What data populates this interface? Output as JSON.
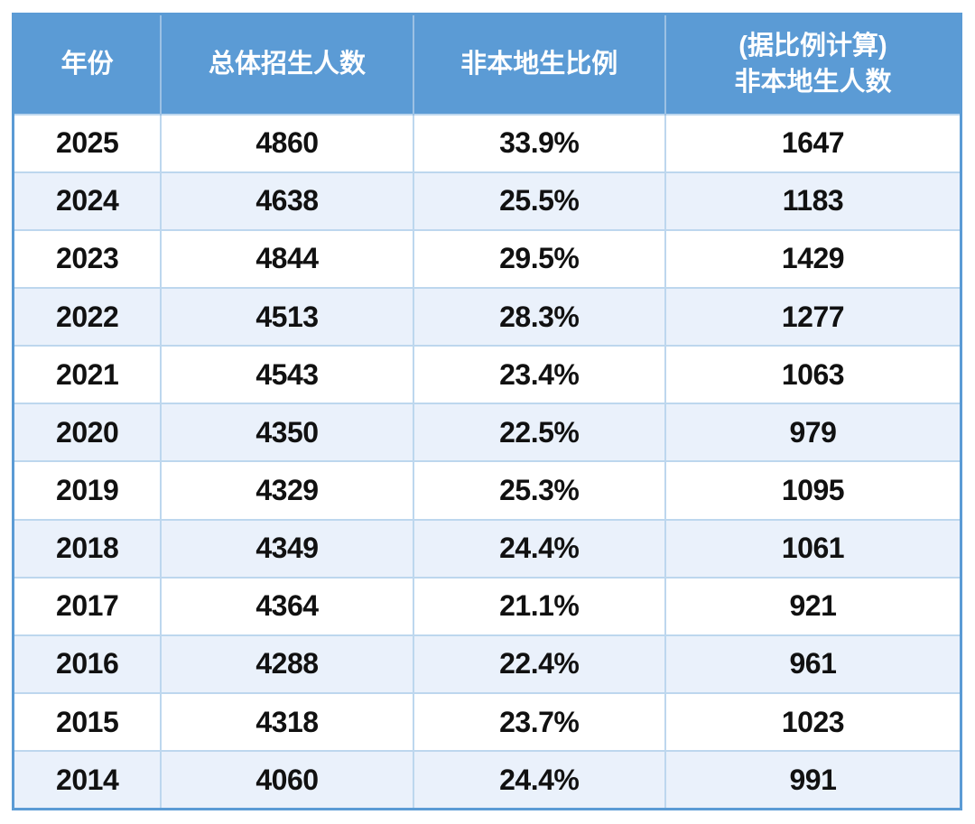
{
  "colors": {
    "header_bg": "#5B9BD5",
    "header_text": "#FFFFFF",
    "row_alt_bg": "#EAF1FB",
    "grid_line": "#BDD7EE",
    "outer_border": "#5B9BD5",
    "body_text": "#111111"
  },
  "chart_data": {
    "type": "table",
    "columns": [
      "年份",
      "总体招生人数",
      "非本地生比例",
      "(据比例计算)非本地生人数"
    ],
    "headers_display": [
      "年份",
      "总体招生人数",
      "非本地生比例",
      "(据比例计算)\n非本地生人数"
    ],
    "rows": [
      [
        "2025",
        "4860",
        "33.9%",
        "1647"
      ],
      [
        "2024",
        "4638",
        "25.5%",
        "1183"
      ],
      [
        "2023",
        "4844",
        "29.5%",
        "1429"
      ],
      [
        "2022",
        "4513",
        "28.3%",
        "1277"
      ],
      [
        "2021",
        "4543",
        "23.4%",
        "1063"
      ],
      [
        "2020",
        "4350",
        "22.5%",
        "979"
      ],
      [
        "2019",
        "4329",
        "25.3%",
        "1095"
      ],
      [
        "2018",
        "4349",
        "24.4%",
        "1061"
      ],
      [
        "2017",
        "4364",
        "21.1%",
        "921"
      ],
      [
        "2016",
        "4288",
        "22.4%",
        "961"
      ],
      [
        "2015",
        "4318",
        "23.7%",
        "1023"
      ],
      [
        "2014",
        "4060",
        "24.4%",
        "991"
      ]
    ]
  }
}
